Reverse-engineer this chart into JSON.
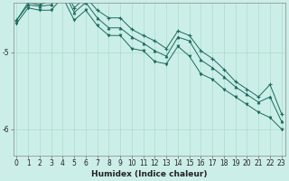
{
  "xlabel": "Humidex (Indice chaleur)",
  "bg_color": "#cceee8",
  "line_color": "#1a6b5e",
  "grid_color": "#aaddcc",
  "x_values": [
    0,
    1,
    2,
    3,
    4,
    5,
    6,
    7,
    8,
    9,
    10,
    11,
    12,
    13,
    14,
    15,
    16,
    17,
    18,
    19,
    20,
    21,
    22,
    23
  ],
  "series1": [
    -4.58,
    -4.38,
    -4.4,
    -4.38,
    -4.18,
    -4.48,
    -4.35,
    -4.55,
    -4.68,
    -4.68,
    -4.8,
    -4.88,
    -4.98,
    -5.05,
    -4.8,
    -4.85,
    -5.1,
    -5.2,
    -5.32,
    -5.45,
    -5.55,
    -5.65,
    -5.58,
    -5.9
  ],
  "series2": [
    -4.58,
    -4.35,
    -4.38,
    -4.32,
    -4.12,
    -4.42,
    -4.28,
    -4.45,
    -4.55,
    -4.55,
    -4.7,
    -4.78,
    -4.85,
    -4.95,
    -4.72,
    -4.78,
    -4.98,
    -5.08,
    -5.22,
    -5.38,
    -5.48,
    -5.58,
    -5.42,
    -5.8
  ],
  "series3": [
    -4.62,
    -4.42,
    -4.45,
    -4.45,
    -4.28,
    -4.58,
    -4.45,
    -4.65,
    -4.78,
    -4.78,
    -4.95,
    -4.98,
    -5.12,
    -5.15,
    -4.92,
    -5.05,
    -5.28,
    -5.35,
    -5.48,
    -5.58,
    -5.68,
    -5.78,
    -5.85,
    -6.0
  ],
  "ylim_min": -6.35,
  "ylim_max": -4.35,
  "yticks": [
    -6.0,
    -5.0
  ],
  "xticks": [
    0,
    1,
    2,
    3,
    4,
    5,
    6,
    7,
    8,
    9,
    10,
    11,
    12,
    13,
    14,
    15,
    16,
    17,
    18,
    19,
    20,
    21,
    22,
    23
  ],
  "tick_fontsize": 5.5,
  "xlabel_fontsize": 6.5
}
